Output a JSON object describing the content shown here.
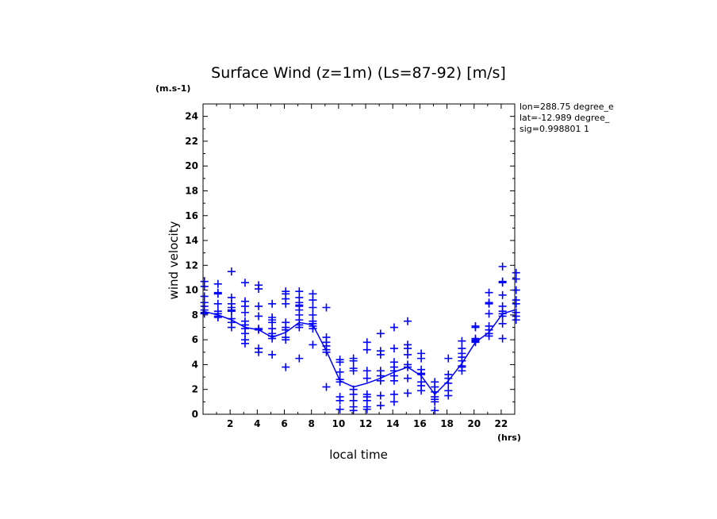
{
  "chart_data": {
    "type": "scatter",
    "title": "Surface Wind (z=1m) (Ls=87-92) [m/s]",
    "ylabel": "wind velocity",
    "yunit": "(m.s-1)",
    "xlabel": "local time",
    "xunit": "(hrs)",
    "info": [
      "lon=288.75 degree_e",
      "lat=-12.989 degree_",
      "sig=0.998801 1"
    ],
    "xlim": [
      0,
      23
    ],
    "ylim": [
      0,
      25
    ],
    "x_ticks": [
      2,
      4,
      6,
      8,
      10,
      12,
      14,
      16,
      18,
      20,
      22
    ],
    "y_ticks": [
      0,
      2,
      4,
      6,
      8,
      10,
      12,
      14,
      16,
      18,
      20,
      22,
      24
    ],
    "color": "#0000ff",
    "series": [
      {
        "kind": "points",
        "x": [
          0.1,
          0.1,
          0.1,
          0.1,
          0.1,
          0.1,
          0.1,
          0.1,
          1.1,
          1.1,
          1.1,
          1.1,
          1.1,
          1.1,
          1.1,
          1.1,
          2.1,
          2.1,
          2.1,
          2.1,
          2.1,
          2.1,
          2.1,
          2.1,
          2.1,
          3.1,
          3.1,
          3.1,
          3.1,
          3.1,
          3.1,
          3.1,
          3.1,
          3.1,
          3.1,
          4.1,
          4.1,
          4.1,
          4.1,
          4.1,
          4.1,
          4.1,
          4.1,
          5.1,
          5.1,
          5.1,
          5.1,
          5.1,
          5.1,
          5.1,
          5.1,
          5.1,
          6.1,
          6.1,
          6.1,
          6.1,
          6.1,
          6.1,
          6.1,
          6.1,
          6.1,
          6.1,
          7.1,
          7.1,
          7.1,
          7.1,
          7.1,
          7.1,
          7.1,
          7.1,
          7.1,
          7.1,
          7.1,
          8.1,
          8.1,
          8.1,
          8.1,
          8.1,
          8.1,
          8.1,
          8.1,
          8.1,
          9.1,
          9.1,
          9.1,
          9.1,
          9.1,
          9.1,
          9.1,
          10.1,
          10.1,
          10.1,
          10.1,
          10.1,
          10.1,
          10.1,
          10.1,
          11.1,
          11.1,
          11.1,
          11.1,
          11.1,
          11.1,
          11.1,
          11.1,
          11.1,
          12.1,
          12.1,
          12.1,
          12.1,
          12.1,
          12.1,
          12.1,
          12.1,
          12.1,
          13.1,
          13.1,
          13.1,
          13.1,
          13.1,
          13.1,
          13.1,
          13.1,
          14.1,
          14.1,
          14.1,
          14.1,
          14.1,
          14.1,
          14.1,
          14.1,
          14.1,
          15.1,
          15.1,
          15.1,
          15.1,
          15.1,
          15.1,
          15.1,
          15.1,
          16.1,
          16.1,
          16.1,
          16.1,
          16.1,
          16.1,
          16.1,
          16.1,
          17.1,
          17.1,
          17.1,
          17.1,
          17.1,
          17.1,
          17.1,
          18.1,
          18.1,
          18.1,
          18.1,
          18.1,
          18.1,
          19.1,
          19.1,
          19.1,
          19.1,
          19.1,
          19.1,
          19.1,
          19.1,
          20.1,
          20.1,
          20.1,
          20.1,
          20.1,
          20.1,
          21.1,
          21.1,
          21.1,
          21.1,
          21.1,
          21.1,
          21.1,
          21.1,
          22.1,
          22.1,
          22.1,
          22.1,
          22.1,
          22.1,
          22.1,
          22.1,
          22.1,
          22.1,
          23.1,
          23.1,
          23.1,
          23.1,
          23.1,
          23.1,
          23.1,
          23.1
        ],
        "y": [
          10.7,
          10.3,
          9.5,
          9.0,
          8.7,
          8.4,
          8.2,
          8.1,
          10.5,
          9.8,
          9.7,
          8.9,
          8.3,
          8.1,
          7.9,
          7.8,
          11.5,
          9.4,
          8.9,
          8.6,
          8.4,
          8.3,
          7.7,
          7.4,
          7.0,
          10.6,
          9.1,
          8.7,
          8.2,
          7.5,
          7.2,
          6.9,
          6.5,
          6.0,
          5.7,
          10.4,
          10.1,
          8.7,
          7.9,
          6.9,
          6.8,
          5.3,
          5.0,
          8.9,
          7.8,
          7.6,
          7.4,
          6.9,
          6.5,
          6.3,
          6.1,
          4.8,
          9.9,
          9.7,
          9.3,
          8.9,
          7.4,
          7.0,
          6.8,
          6.2,
          6.0,
          3.8,
          9.9,
          9.4,
          9.0,
          8.8,
          8.7,
          8.4,
          8.0,
          7.6,
          7.2,
          7.0,
          4.5,
          9.7,
          9.2,
          8.6,
          8.0,
          7.5,
          7.3,
          7.1,
          6.9,
          5.6,
          8.6,
          6.2,
          5.8,
          5.5,
          5.2,
          5.0,
          2.2,
          4.4,
          4.2,
          3.4,
          2.8,
          2.6,
          1.4,
          1.1,
          0.4,
          4.5,
          4.3,
          3.7,
          3.5,
          2.0,
          1.6,
          1.1,
          0.6,
          0.3,
          5.8,
          5.2,
          3.5,
          2.9,
          1.6,
          1.4,
          1.1,
          0.6,
          0.4,
          6.5,
          5.1,
          4.8,
          3.5,
          3.1,
          2.7,
          1.5,
          0.7,
          7.0,
          5.3,
          4.2,
          3.8,
          3.5,
          3.1,
          2.7,
          1.6,
          1.0,
          7.5,
          5.6,
          5.3,
          4.8,
          4.0,
          3.8,
          2.9,
          1.7,
          4.9,
          4.5,
          3.6,
          3.3,
          3.2,
          2.6,
          2.3,
          1.9,
          2.6,
          2.2,
          1.8,
          1.4,
          1.2,
          1.0,
          0.3,
          4.5,
          3.2,
          2.9,
          2.5,
          1.9,
          1.5,
          5.9,
          5.3,
          4.9,
          4.6,
          4.3,
          3.9,
          3.8,
          3.5,
          7.1,
          7.0,
          6.1,
          6.0,
          5.9,
          5.8,
          9.8,
          9.0,
          8.9,
          8.1,
          7.1,
          6.8,
          6.5,
          6.3,
          11.9,
          10.7,
          10.6,
          9.6,
          8.7,
          8.3,
          8.1,
          7.9,
          7.3,
          6.1,
          11.4,
          10.9,
          10.0,
          9.2,
          8.9,
          8.2,
          7.9,
          7.6
        ]
      },
      {
        "kind": "line",
        "x": [
          0,
          1.1,
          2.1,
          3.1,
          4.1,
          5.1,
          6.1,
          7.1,
          8.1,
          9.1,
          10.1,
          11.1,
          12.1,
          13.1,
          14.1,
          15.1,
          16.1,
          17.1,
          18.1,
          19.1,
          20.1,
          21.1,
          22.1,
          23.0
        ],
        "y": [
          8.3,
          8.0,
          7.6,
          7.0,
          6.8,
          6.2,
          6.6,
          7.4,
          7.2,
          5.1,
          2.7,
          2.2,
          2.5,
          2.9,
          3.4,
          3.8,
          3.1,
          1.6,
          2.7,
          4.1,
          5.8,
          6.6,
          8.1,
          8.4
        ]
      }
    ]
  }
}
